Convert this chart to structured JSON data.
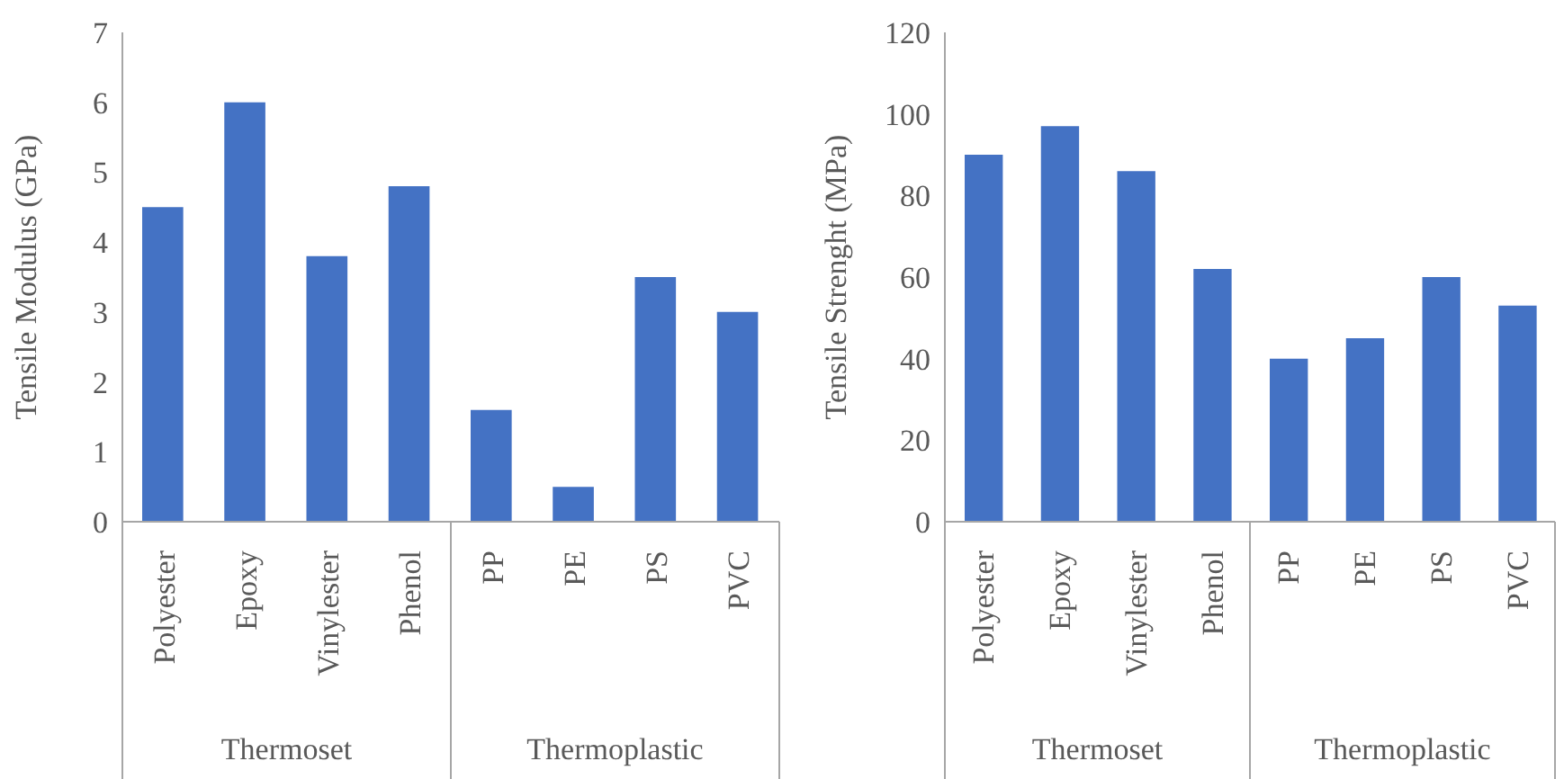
{
  "chart_data": [
    {
      "type": "bar",
      "ylabel": "Tensile Modulus (GPa)",
      "categories": [
        "Polyester",
        "Epoxy",
        "Vinylester",
        "Phenol",
        "PP",
        "PE",
        "PS",
        "PVC"
      ],
      "values": [
        4.5,
        6.0,
        3.8,
        4.8,
        1.6,
        0.5,
        3.5,
        3.0
      ],
      "color": "#4472c4",
      "ylim": [
        0,
        7
      ],
      "yticks": [
        0,
        1,
        2,
        3,
        4,
        5,
        6,
        7
      ],
      "grid": false,
      "legend": false,
      "annotations": [
        "Thermoset",
        "Thermoplastic"
      ]
    },
    {
      "type": "bar",
      "ylabel": "Tensile Strenght (MPa)",
      "categories": [
        "Polyester",
        "Epoxy",
        "Vinylester",
        "Phenol",
        "PP",
        "PE",
        "PS",
        "PVC"
      ],
      "values": [
        90,
        97,
        86,
        62,
        40,
        45,
        60,
        53
      ],
      "color": "#4472c4",
      "ylim": [
        0,
        120
      ],
      "yticks": [
        0,
        20,
        40,
        60,
        80,
        100,
        120
      ],
      "grid": false,
      "legend": false,
      "annotations": [
        "Thermoset",
        "Thermoplastic"
      ]
    }
  ]
}
